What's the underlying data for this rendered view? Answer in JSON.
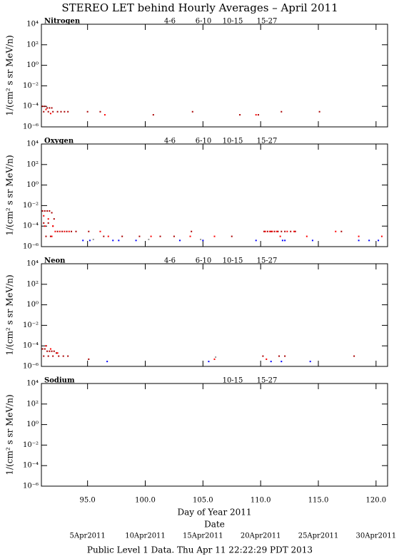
{
  "title": "STEREO LET behind Hourly Averages – April 2011",
  "footer": "Public Level 1 Data. Thu Apr 11 22:22:29 PDT 2013",
  "chart_data": [
    {
      "type": "scatter",
      "label": "Nitrogen",
      "ylabel": "1/(cm² s sr MeV/n)",
      "log_y": true,
      "xlim": [
        91,
        121
      ],
      "ylim": [
        1e-06,
        10000.0
      ],
      "yticks": [
        {
          "value": 10000.0,
          "label": "10⁴"
        },
        {
          "value": 100,
          "label": "10²"
        },
        {
          "value": 1,
          "label": "10⁰"
        },
        {
          "value": 0.01,
          "label": "10⁻²"
        },
        {
          "value": 0.0001,
          "label": "10⁻⁴"
        },
        {
          "value": 1e-06,
          "label": "10⁻⁶"
        }
      ],
      "series": [
        {
          "name": "4-6",
          "color": "#aa0000",
          "x": [
            91.1,
            91.3,
            91.5,
            91.7,
            91.9,
            91.2,
            91.6,
            92.0,
            92.4,
            92.7,
            93.0,
            93.3,
            95.0,
            96.1,
            100.7,
            104.1,
            108.2,
            109.8,
            111.8,
            115.1
          ],
          "values": [
            0.0001,
            0.0001,
            7e-05,
            7e-05,
            7e-05,
            3e-05,
            3e-05,
            3e-05,
            3e-05,
            3e-05,
            3e-05,
            3e-05,
            3e-05,
            3e-05,
            1.5e-05,
            3e-05,
            1.5e-05,
            1.5e-05,
            3e-05,
            3e-05
          ]
        },
        {
          "name": "6-10",
          "color": "#ff0000",
          "x": [
            91.4,
            91.8,
            96.5,
            109.6
          ],
          "values": [
            5e-05,
            2e-05,
            1.5e-05,
            1.5e-05
          ]
        },
        {
          "name": "10-15",
          "color": "#999999",
          "x": [],
          "values": []
        },
        {
          "name": "15-27",
          "color": "#0000ff",
          "x": [],
          "values": []
        }
      ]
    },
    {
      "type": "scatter",
      "label": "Oxygen",
      "ylabel": "1/(cm² s sr MeV/n)",
      "log_y": true,
      "xlim": [
        91,
        121
      ],
      "ylim": [
        1e-06,
        10000.0
      ],
      "yticks": [
        {
          "value": 10000.0,
          "label": "10⁴"
        },
        {
          "value": 100,
          "label": "10²"
        },
        {
          "value": 1,
          "label": "10⁰"
        },
        {
          "value": 0.01,
          "label": "10⁻²"
        },
        {
          "value": 0.0001,
          "label": "10⁻⁴"
        },
        {
          "value": 1e-06,
          "label": "10⁻⁶"
        }
      ],
      "series": [
        {
          "name": "4-6",
          "color": "#aa0000",
          "x": [
            91.1,
            91.3,
            91.5,
            91.7,
            91.9,
            92.1,
            91.2,
            91.6,
            92.0,
            92.4,
            92.8,
            93.2,
            93.6,
            94.0,
            91.4,
            91.8,
            95.1,
            96.4,
            98.0,
            99.5,
            101.3,
            102.5,
            104.0,
            107.5,
            110.3,
            110.6,
            110.9,
            111.2,
            111.5,
            111.8,
            112.1,
            112.6,
            113.0,
            117.0
          ],
          "values": [
            0.003,
            0.003,
            0.003,
            0.003,
            0.002,
            0.0005,
            0.0002,
            0.0002,
            0.0001,
            3e-05,
            3e-05,
            3e-05,
            3e-05,
            3e-05,
            1e-05,
            1e-05,
            3e-05,
            1e-05,
            1e-05,
            1e-05,
            1e-05,
            1e-05,
            3e-05,
            1e-05,
            3e-05,
            3e-05,
            3e-05,
            3e-05,
            3e-05,
            3e-05,
            3e-05,
            3e-05,
            3e-05,
            3e-05
          ]
        },
        {
          "name": "6-10",
          "color": "#ff0000",
          "x": [
            91.2,
            91.6,
            92.0,
            92.2,
            92.6,
            93.0,
            93.4,
            91.3,
            91.9,
            96.1,
            96.8,
            100.5,
            103.9,
            106.0,
            110.4,
            110.8,
            111.0,
            111.4,
            111.7,
            112.3,
            112.9,
            114.0,
            116.5,
            118.5,
            120.5
          ],
          "values": [
            0.001,
            0.0005,
            0.0001,
            3e-05,
            3e-05,
            3e-05,
            3e-05,
            0.0001,
            1e-05,
            3e-05,
            1e-05,
            1e-05,
            1e-05,
            1e-05,
            3e-05,
            3e-05,
            3e-05,
            3e-05,
            1e-05,
            3e-05,
            3e-05,
            1e-05,
            3e-05,
            1e-05,
            1e-05
          ]
        },
        {
          "name": "10-15",
          "color": "#999999",
          "x": [
            95.5,
            100.3,
            104.8
          ],
          "values": [
            5e-06,
            5e-06,
            5e-06
          ]
        },
        {
          "name": "15-27",
          "color": "#0000ff",
          "x": [
            94.6,
            95.2,
            97.2,
            97.7,
            99.2,
            103.0,
            105.0,
            109.6,
            111.9,
            112.1,
            114.5,
            118.5,
            119.4,
            120.2
          ],
          "values": [
            4e-06,
            4e-06,
            4e-06,
            4e-06,
            4e-06,
            4e-06,
            4e-06,
            4e-06,
            4e-06,
            4e-06,
            4e-06,
            4e-06,
            4e-06,
            4e-06
          ]
        }
      ]
    },
    {
      "type": "scatter",
      "label": "Neon",
      "ylabel": "1/(cm² s sr MeV/n)",
      "log_y": true,
      "xlim": [
        91,
        121
      ],
      "ylim": [
        1e-06,
        10000.0
      ],
      "yticks": [
        {
          "value": 10000.0,
          "label": "10⁴"
        },
        {
          "value": 100,
          "label": "10²"
        },
        {
          "value": 1,
          "label": "10⁰"
        },
        {
          "value": 0.01,
          "label": "10⁻²"
        },
        {
          "value": 0.0001,
          "label": "10⁻⁴"
        },
        {
          "value": 1e-06,
          "label": "10⁻⁶"
        }
      ],
      "series": [
        {
          "name": "4-6",
          "color": "#aa0000",
          "x": [
            91.1,
            91.3,
            91.5,
            91.7,
            91.9,
            92.1,
            92.3,
            91.2,
            91.6,
            92.0,
            92.5,
            92.9,
            93.3,
            95.1,
            110.2,
            111.6,
            112.1,
            118.1
          ],
          "values": [
            5e-05,
            5e-05,
            3e-05,
            3e-05,
            3e-05,
            3e-05,
            2e-05,
            1e-05,
            1e-05,
            1e-05,
            1e-05,
            1e-05,
            1e-05,
            5e-06,
            1e-05,
            1e-05,
            1e-05,
            1e-05
          ]
        },
        {
          "name": "6-10",
          "color": "#ff0000",
          "x": [
            91.4,
            91.8,
            92.4,
            106.0,
            110.5
          ],
          "values": [
            0.0001,
            5e-05,
            2e-05,
            5e-06,
            5e-06
          ]
        },
        {
          "name": "10-15",
          "color": "#999999",
          "x": [
            106.1
          ],
          "values": [
            8e-06
          ]
        },
        {
          "name": "15-27",
          "color": "#0000ff",
          "x": [
            96.7,
            105.5,
            110.9,
            111.8,
            114.3
          ],
          "values": [
            3e-06,
            3e-06,
            3e-06,
            3e-06,
            3e-06
          ]
        }
      ]
    },
    {
      "type": "scatter",
      "label": "Sodium",
      "ylabel": "1/(cm² s sr MeV/n)",
      "log_y": true,
      "xlim": [
        91,
        121
      ],
      "ylim": [
        1e-06,
        10000.0
      ],
      "yticks": [
        {
          "value": 10000.0,
          "label": "10⁴"
        },
        {
          "value": 100,
          "label": "10²"
        },
        {
          "value": 1,
          "label": "10⁰"
        },
        {
          "value": 0.01,
          "label": "10⁻²"
        },
        {
          "value": 0.0001,
          "label": "10⁻⁴"
        },
        {
          "value": 1e-06,
          "label": "10⁻⁶"
        }
      ],
      "xlabel": "Day of Year 2011",
      "xticks": [
        {
          "value": 95,
          "label": "95.0"
        },
        {
          "value": 100,
          "label": "100.0"
        },
        {
          "value": 105,
          "label": "105.0"
        },
        {
          "value": 110,
          "label": "110.0"
        },
        {
          "value": 115,
          "label": "115.0"
        },
        {
          "value": 120,
          "label": "120.0"
        }
      ],
      "x2label": "Date",
      "x2ticks": [
        {
          "value": 95,
          "label": "5Apr2011"
        },
        {
          "value": 100,
          "label": "10Apr2011"
        },
        {
          "value": 105,
          "label": "15Apr2011"
        },
        {
          "value": 110,
          "label": "20Apr2011"
        },
        {
          "value": 115,
          "label": "25Apr2011"
        },
        {
          "value": 120,
          "label": "30Apr2011"
        }
      ],
      "series": [
        {
          "name": "10-15",
          "color": "#999999",
          "x": [],
          "values": []
        },
        {
          "name": "15-27",
          "color": "#0000ff",
          "x": [],
          "values": []
        }
      ]
    }
  ]
}
